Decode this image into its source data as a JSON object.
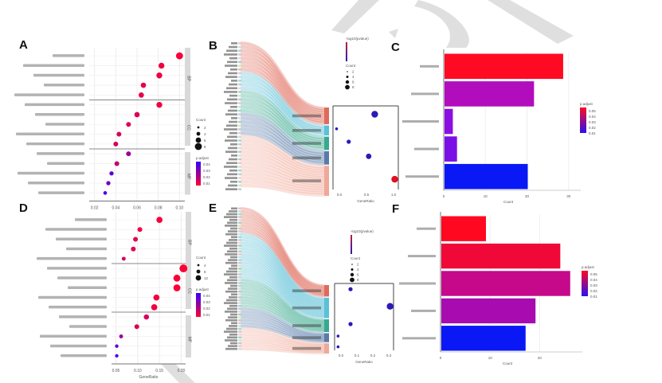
{
  "figure": {
    "panels": [
      "A",
      "B",
      "C",
      "D",
      "E",
      "F"
    ],
    "watermark_color": "#d6d6d6"
  },
  "chart_data": [
    {
      "panel": "A",
      "type": "scatter",
      "title": "",
      "xlabel": "GeneRatio",
      "ylabel": "",
      "xticks": [
        "0.02",
        "0.04",
        "0.06",
        "0.08",
        "0.10"
      ],
      "xlim": [
        0.015,
        0.105
      ],
      "facets": [
        "BP",
        "CC",
        "MF"
      ],
      "legend_size_title": "Count",
      "legend_size_values": [
        "2",
        "4",
        "6",
        "8"
      ],
      "legend_color_title": "p.adjust",
      "legend_color_ticks": [
        "0.04",
        "0.03",
        "0.02",
        "0.01"
      ],
      "color_low": "#ff0033",
      "color_high": "#3300ff",
      "grid": true,
      "points": [
        {
          "term": "term A1",
          "facet": "BP",
          "x": 0.1,
          "size": 8,
          "padj": 0.002
        },
        {
          "term": "term A2",
          "facet": "BP",
          "x": 0.083,
          "size": 6,
          "padj": 0.004
        },
        {
          "term": "term A3",
          "facet": "BP",
          "x": 0.081,
          "size": 6,
          "padj": 0.004
        },
        {
          "term": "term A4",
          "facet": "BP",
          "x": 0.066,
          "size": 5,
          "padj": 0.006
        },
        {
          "term": "term A5",
          "facet": "BP",
          "x": 0.064,
          "size": 5,
          "padj": 0.006
        },
        {
          "term": "term A6",
          "facet": "CC",
          "x": 0.081,
          "size": 6,
          "padj": 0.004
        },
        {
          "term": "term A7",
          "facet": "CC",
          "x": 0.06,
          "size": 5,
          "padj": 0.008
        },
        {
          "term": "term A8",
          "facet": "CC",
          "x": 0.052,
          "size": 4,
          "padj": 0.008
        },
        {
          "term": "term A9",
          "facet": "CC",
          "x": 0.043,
          "size": 4,
          "padj": 0.01
        },
        {
          "term": "term A10",
          "facet": "CC",
          "x": 0.04,
          "size": 4,
          "padj": 0.01
        },
        {
          "term": "term A11",
          "facet": "MF",
          "x": 0.052,
          "size": 4,
          "padj": 0.025
        },
        {
          "term": "term A12",
          "facet": "MF",
          "x": 0.041,
          "size": 4,
          "padj": 0.015
        },
        {
          "term": "term A13",
          "facet": "MF",
          "x": 0.036,
          "size": 3,
          "padj": 0.04
        },
        {
          "term": "term A14",
          "facet": "MF",
          "x": 0.033,
          "size": 3,
          "padj": 0.035
        },
        {
          "term": "term A15",
          "facet": "MF",
          "x": 0.03,
          "size": 2,
          "padj": 0.045
        }
      ]
    },
    {
      "panel": "B",
      "type": "sankey-dot",
      "title": "",
      "genes_count": 40,
      "pathways": [
        {
          "name": "pathway B1",
          "color": "#e06a5a",
          "share": 0.2,
          "dot_x": 0.65,
          "dot_size": 4,
          "padj": 0.04
        },
        {
          "name": "pathway B2",
          "color": "#5bc0d8",
          "share": 0.12,
          "dot_x": 0.02,
          "dot_size": 1,
          "padj": 0.04
        },
        {
          "name": "pathway B3",
          "color": "#3aa890",
          "share": 0.16,
          "dot_x": 0.22,
          "dot_size": 2,
          "padj": 0.04
        },
        {
          "name": "pathway B4",
          "color": "#5a7aa8",
          "share": 0.16,
          "dot_x": 0.55,
          "dot_size": 3,
          "padj": 0.04
        },
        {
          "name": "pathway B5",
          "color": "#f0a898",
          "share": 0.36,
          "dot_x": 0.98,
          "dot_size": 4,
          "padj": 0.001
        }
      ],
      "dot_xticks": [
        "0.0",
        "0.5",
        "1.0"
      ],
      "dot_xlabel": "GeneRatio",
      "legend_color_title": "-log10(pvalue)",
      "legend_size_title": "Count",
      "legend_size_values": [
        "2",
        "4",
        "6",
        "8"
      ]
    },
    {
      "panel": "C",
      "type": "bar",
      "orientation": "horizontal",
      "title": "",
      "xlabel": "Count",
      "xticks": [
        "0",
        "10",
        "20",
        "30"
      ],
      "xlim": [
        0,
        31
      ],
      "categories": [
        "cat C1",
        "cat C2",
        "cat C3",
        "cat C4",
        "cat C5"
      ],
      "values": [
        28.5,
        21.5,
        2.0,
        3.0,
        20.0
      ],
      "colors": [
        "#ff0a22",
        "#b20dbd",
        "#8a0fe0",
        "#7a10e6",
        "#0a18f5"
      ],
      "legend_title": "p.adjust",
      "legend_ticks": [
        "0.05",
        "0.04",
        "0.03",
        "0.02",
        "0.01"
      ]
    },
    {
      "panel": "D",
      "type": "scatter",
      "title": "",
      "xlabel": "GeneRatio",
      "xticks": [
        "0.05",
        "0.10",
        "0.15",
        "0.20"
      ],
      "xlim": [
        0.04,
        0.21
      ],
      "facets": [
        "BP",
        "CC",
        "MF"
      ],
      "legend_size_title": "Count",
      "legend_size_values": [
        "4",
        "8",
        "12"
      ],
      "legend_color_title": "p.adjust",
      "legend_color_ticks": [
        "0.04",
        "0.03",
        "0.02",
        "0.01"
      ],
      "color_low": "#ff0033",
      "color_high": "#3300ff",
      "grid": true,
      "points": [
        {
          "term": "term D1",
          "facet": "BP",
          "x": 0.15,
          "size": 8,
          "padj": 0.002
        },
        {
          "term": "term D2",
          "facet": "BP",
          "x": 0.105,
          "size": 5,
          "padj": 0.004
        },
        {
          "term": "term D3",
          "facet": "BP",
          "x": 0.095,
          "size": 5,
          "padj": 0.006
        },
        {
          "term": "term D4",
          "facet": "BP",
          "x": 0.09,
          "size": 5,
          "padj": 0.006
        },
        {
          "term": "term D5",
          "facet": "BP",
          "x": 0.068,
          "size": 3,
          "padj": 0.01
        },
        {
          "term": "term D6",
          "facet": "CC",
          "x": 0.205,
          "size": 12,
          "padj": 0.001
        },
        {
          "term": "term D7",
          "facet": "CC",
          "x": 0.19,
          "size": 10,
          "padj": 0.001
        },
        {
          "term": "term D8",
          "facet": "CC",
          "x": 0.19,
          "size": 10,
          "padj": 0.001
        },
        {
          "term": "term D9",
          "facet": "CC",
          "x": 0.143,
          "size": 8,
          "padj": 0.003
        },
        {
          "term": "term D10",
          "facet": "CC",
          "x": 0.138,
          "size": 8,
          "padj": 0.003
        },
        {
          "term": "term D11",
          "facet": "MF",
          "x": 0.12,
          "size": 6,
          "padj": 0.01
        },
        {
          "term": "term D12",
          "facet": "MF",
          "x": 0.098,
          "size": 5,
          "padj": 0.008
        },
        {
          "term": "term D13",
          "facet": "MF",
          "x": 0.062,
          "size": 3,
          "padj": 0.025
        },
        {
          "term": "term D14",
          "facet": "MF",
          "x": 0.052,
          "size": 2,
          "padj": 0.04
        },
        {
          "term": "term D15",
          "facet": "MF",
          "x": 0.052,
          "size": 2,
          "padj": 0.045
        }
      ]
    },
    {
      "panel": "E",
      "type": "sankey-dot",
      "title": "",
      "genes_count": 50,
      "pathways": [
        {
          "name": "pathway E1",
          "color": "#e06a5a",
          "share": 0.18,
          "dot_x": 0.25,
          "dot_size": 2,
          "padj": 0.04
        },
        {
          "name": "pathway E2",
          "color": "#5bc0d8",
          "share": 0.32,
          "dot_x": 0.98,
          "dot_size": 4,
          "padj": 0.04
        },
        {
          "name": "pathway E3",
          "color": "#3aa890",
          "share": 0.2,
          "dot_x": 0.25,
          "dot_size": 2,
          "padj": 0.04
        },
        {
          "name": "pathway E4",
          "color": "#5a7aa8",
          "share": 0.14,
          "dot_x": 0.02,
          "dot_size": 1,
          "padj": 0.04
        },
        {
          "name": "pathway E5",
          "color": "#f0a898",
          "share": 0.16,
          "dot_x": 0.02,
          "dot_size": 1,
          "padj": 0.04
        }
      ],
      "dot_xticks": [
        "0.0",
        "0.1",
        "0.2",
        "0.3"
      ],
      "dot_xlabel": "GeneRatio",
      "legend_color_title": "-log10(pvalue)",
      "legend_size_title": "Count",
      "legend_size_values": [
        "2",
        "4",
        "6",
        "8"
      ]
    },
    {
      "panel": "F",
      "type": "bar",
      "orientation": "horizontal",
      "title": "",
      "xlabel": "Count",
      "xticks": [
        "0",
        "10",
        "20"
      ],
      "xlim": [
        0,
        27
      ],
      "categories": [
        "cat F1",
        "cat F2",
        "cat F3",
        "cat F4",
        "cat F5"
      ],
      "values": [
        9.0,
        24.0,
        26.0,
        19.0,
        17.0
      ],
      "colors": [
        "#ff0820",
        "#f00838",
        "#c5098a",
        "#a80cb0",
        "#0a18f5"
      ],
      "legend_title": "p.adjust",
      "legend_ticks": [
        "0.05",
        "0.04",
        "0.03",
        "0.02",
        "0.01"
      ]
    }
  ]
}
